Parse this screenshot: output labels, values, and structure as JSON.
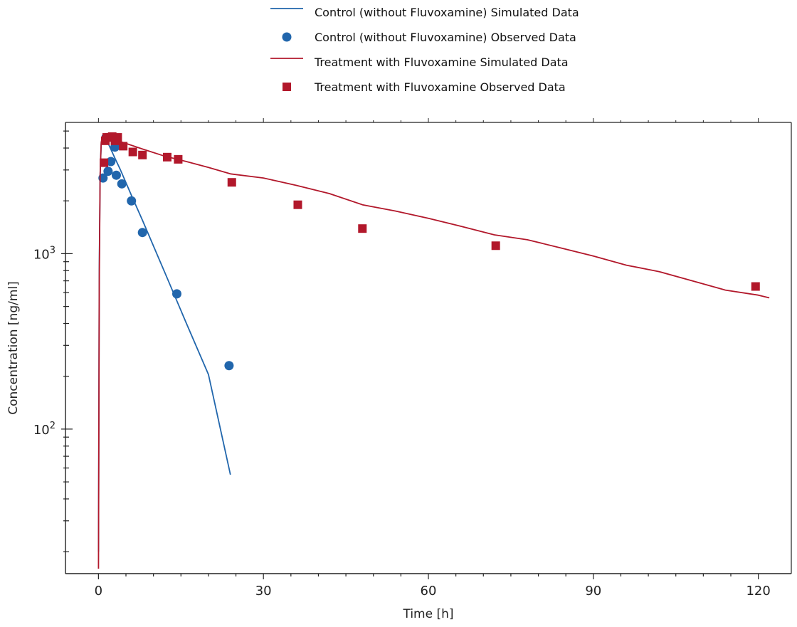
{
  "chart_data": {
    "type": "line",
    "xlabel": "Time [h]",
    "ylabel": "Concentration [ng/ml]",
    "xlim": [
      -6,
      126
    ],
    "ylim": [
      15,
      5600
    ],
    "yscale": "log",
    "xticks": [
      0,
      30,
      60,
      90,
      120
    ],
    "yticks_labeled": [
      {
        "value": 100,
        "base": "10",
        "exp": "2"
      },
      {
        "value": 1000,
        "base": "10",
        "exp": "3"
      }
    ],
    "grid": false,
    "legend_position": "top-center",
    "series": [
      {
        "name": "Control (without Fluvoxamine) Simulated Data",
        "kind": "line",
        "color": "#2166ac",
        "x": [
          0,
          0.15,
          0.3,
          0.5,
          0.7,
          0.9,
          1.1,
          1.4,
          2,
          3,
          4,
          6,
          8,
          12,
          16,
          20,
          24
        ],
        "y": [
          20,
          800,
          2800,
          4200,
          4700,
          4800,
          4700,
          4500,
          4100,
          3500,
          3000,
          2150,
          1550,
          790,
          400,
          205,
          55
        ]
      },
      {
        "name": "Control (without Fluvoxamine) Observed Data",
        "kind": "marker",
        "marker": "circle",
        "color": "#2166ac",
        "x": [
          0.83,
          1.75,
          2.25,
          3,
          3.25,
          4.25,
          6,
          8,
          14.25,
          23.75
        ],
        "y": [
          2700,
          2950,
          3350,
          4050,
          2800,
          2500,
          2000,
          1320,
          590,
          230
        ]
      },
      {
        "name": "Treatment with Fluvoxamine Simulated Data",
        "kind": "line",
        "color": "#b2182b",
        "x": [
          0,
          0.15,
          0.3,
          0.5,
          0.7,
          0.9,
          1.2,
          2,
          3,
          4,
          6,
          8,
          12,
          16,
          20,
          24,
          30,
          36,
          42,
          48,
          54,
          60,
          66,
          72,
          78,
          84,
          90,
          96,
          102,
          108,
          114,
          120,
          122
        ],
        "y": [
          16,
          700,
          2800,
          4300,
          4650,
          4700,
          4650,
          4550,
          4450,
          4350,
          4150,
          3950,
          3600,
          3350,
          3100,
          2850,
          2700,
          2450,
          2200,
          1900,
          1750,
          1590,
          1430,
          1280,
          1200,
          1080,
          970,
          860,
          790,
          700,
          620,
          580,
          560
        ]
      },
      {
        "name": "Treatment with Fluvoxamine Observed Data",
        "kind": "marker",
        "marker": "square",
        "color": "#b2182b",
        "x": [
          1,
          1.25,
          1.5,
          2,
          2.5,
          3,
          3.5,
          4.5,
          6.25,
          8,
          12.5,
          14.5,
          24.25,
          36.25,
          48,
          72.25,
          119.5
        ],
        "y": [
          3300,
          4400,
          4600,
          4600,
          4650,
          4400,
          4600,
          4100,
          3800,
          3650,
          3550,
          3450,
          2550,
          1900,
          1390,
          1110,
          650
        ]
      }
    ]
  }
}
